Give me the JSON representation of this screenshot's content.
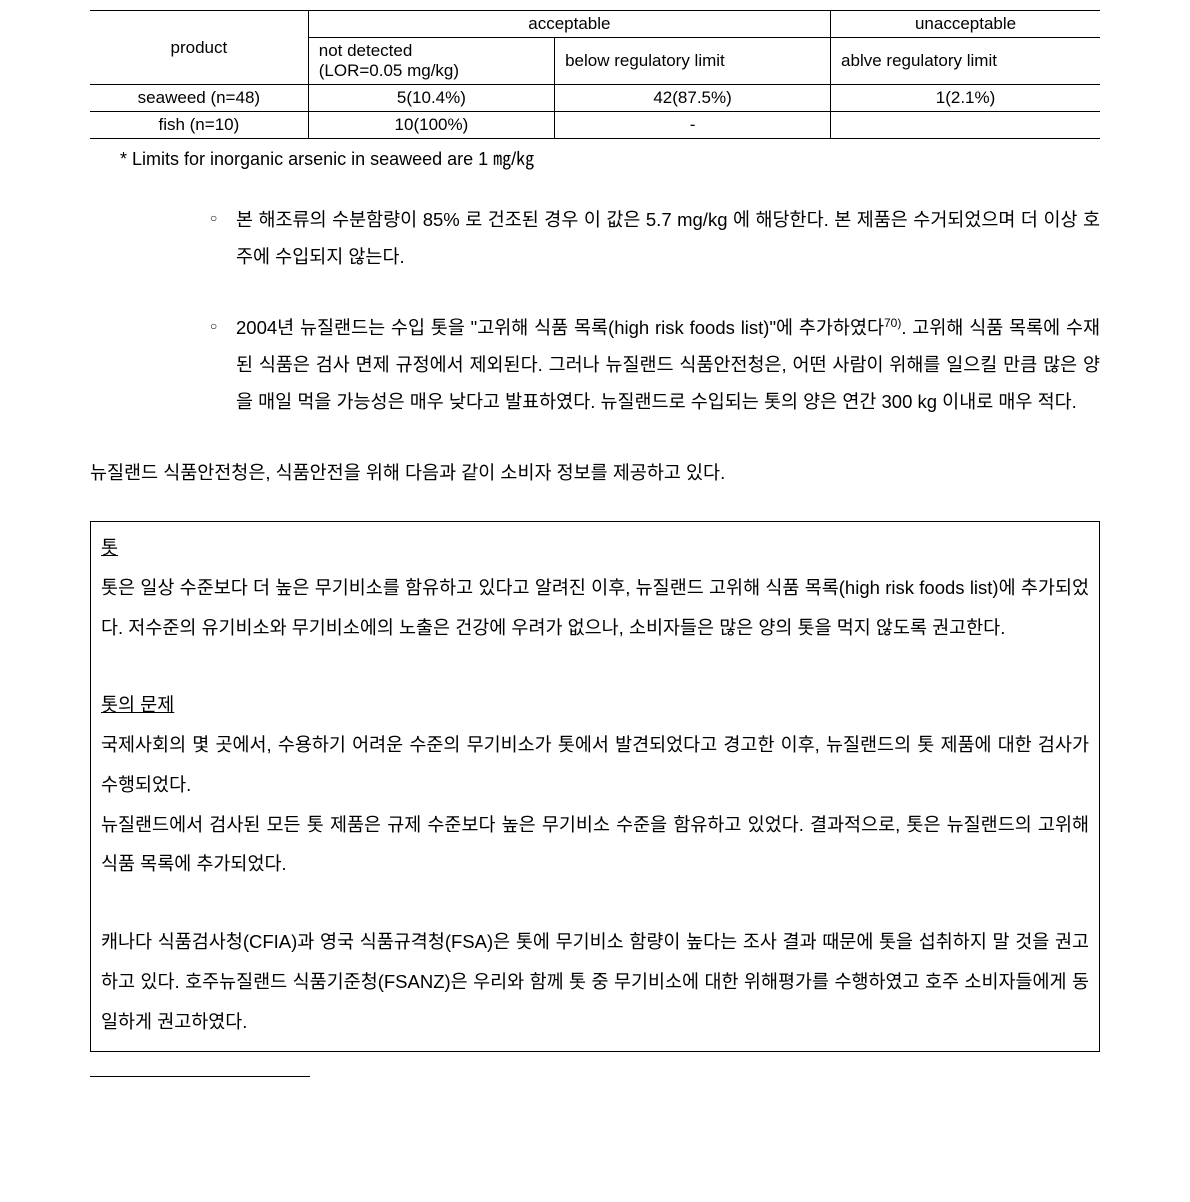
{
  "table": {
    "headers": {
      "product": "product",
      "acceptable": "acceptable",
      "unacceptable": "unacceptable",
      "not_detected_l1": "not detected",
      "not_detected_l2": "(LOR=0.05 mg/kg)",
      "below_limit": "below regulatory limit",
      "above_limit": "ablve regulatory limit"
    },
    "rows": [
      {
        "product": "seaweed (n=48)",
        "not_detected": "5(10.4%)",
        "below": "42(87.5%)",
        "above": "1(2.1%)"
      },
      {
        "product": "fish (n=10)",
        "not_detected": "10(100%)",
        "below": "-",
        "above": ""
      }
    ],
    "footnote": "* Limits for inorganic arsenic in seaweed are 1 ㎎/㎏"
  },
  "bullets": [
    "본 해조류의 수분함량이 85% 로 건조된 경우 이 값은 5.7 mg/kg 에 해당한다. 본 제품은 수거되었으며 더 이상 호주에 수입되지 않는다.",
    "2004년 뉴질랜드는 수입 톳을 \"고위해 식품 목록(high risk foods list)\"에 추가하였다70). 고위해 식품 목록에 수재된 식품은 검사 면제 규정에서 제외된다. 그러나 뉴질랜드 식품안전청은, 어떤 사람이 위해를 일으킬 만큼 많은 양을 매일 먹을 가능성은 매우 낮다고 발표하였다. 뉴질랜드로 수입되는 톳의 양은 연간 300 kg 이내로 매우 적다."
  ],
  "body_line": "뉴질랜드 식품안전청은, 식품안전을 위해 다음과 같이 소비자 정보를 제공하고 있다.",
  "info_box": {
    "s1_title": "톳",
    "s1_body": "톳은 일상 수준보다 더 높은 무기비소를 함유하고 있다고 알려진 이후, 뉴질랜드 고위해 식품 목록(high risk foods list)에 추가되었다. 저수준의 유기비소와 무기비소에의 노출은 건강에 우려가 없으나, 소비자들은 많은 양의 톳을 먹지 않도록 권고한다.",
    "s2_title": "톳의 문제",
    "s2_body1": "국제사회의 몇 곳에서, 수용하기 어려운 수준의 무기비소가 톳에서 발견되었다고 경고한 이후, 뉴질랜드의 톳 제품에 대한 검사가 수행되었다.",
    "s2_body2": "뉴질랜드에서 검사된 모든 톳 제품은 규제 수준보다 높은 무기비소 수준을 함유하고 있었다. 결과적으로, 톳은 뉴질랜드의 고위해식품 목록에 추가되었다.",
    "s3_body": "캐나다 식품검사청(CFIA)과 영국 식품규격청(FSA)은 톳에 무기비소 함량이 높다는 조사 결과 때문에 톳을 섭취하지 말 것을 권고하고 있다. 호주뉴질랜드 식품기준청(FSANZ)은 우리와 함께 톳 중 무기비소에 대한 위해평가를 수행하였고 호주 소비자들에게 동일하게 권고하였다."
  }
}
